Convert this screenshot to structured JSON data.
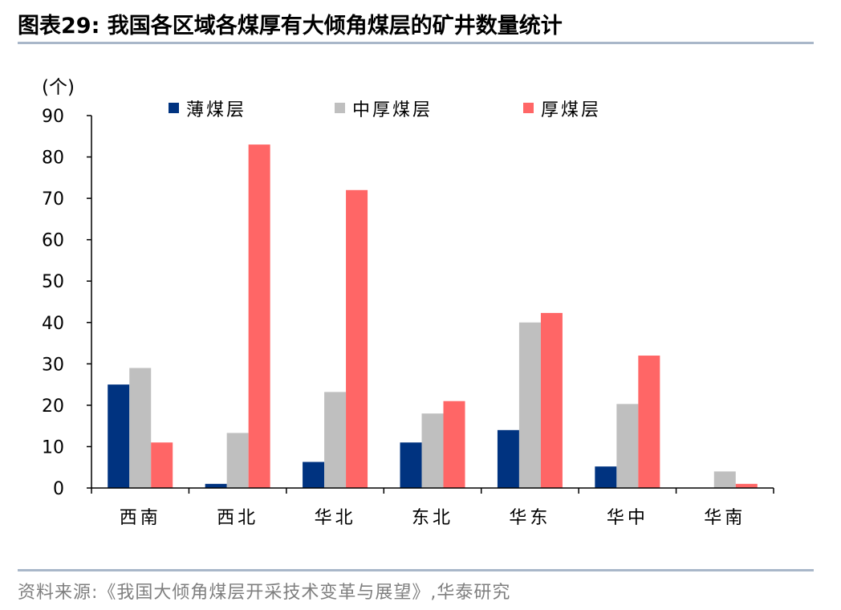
{
  "header": {
    "title": "图表29:  我国各区域各煤厚有大倾角煤层的矿井数量统计"
  },
  "footer": {
    "source": "资料来源:《我国大倾角煤层开采技术变革与展望》,华泰研究"
  },
  "chart_data": {
    "type": "bar",
    "unit_label": "(个)",
    "categories": [
      "西南",
      "西北",
      "华北",
      "东北",
      "华东",
      "华中",
      "华南"
    ],
    "series": [
      {
        "name": "薄煤层",
        "color": "#003380",
        "values": [
          25,
          1,
          6.3,
          11,
          14,
          5.2,
          0
        ]
      },
      {
        "name": "中厚煤层",
        "color": "#bfbfbf",
        "values": [
          29,
          13.3,
          23.2,
          18,
          40,
          20.3,
          4
        ]
      },
      {
        "name": "厚煤层",
        "color": "#ff6666",
        "values": [
          11,
          83,
          72,
          21,
          42.3,
          32,
          1
        ]
      }
    ],
    "ylim": [
      0,
      90
    ],
    "yticks": [
      0,
      10,
      20,
      30,
      40,
      50,
      60,
      70,
      80,
      90
    ],
    "grid": false,
    "legend_position": "top"
  }
}
